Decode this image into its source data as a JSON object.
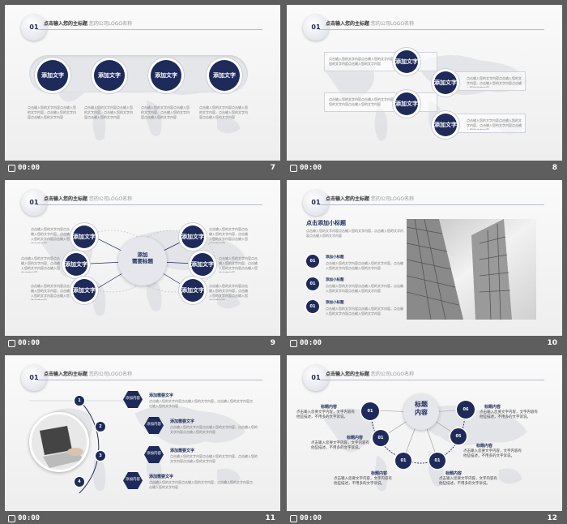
{
  "footer": {
    "time": "00:00"
  },
  "header": {
    "num": "01",
    "title": "点击输入您的主标题",
    "subtitle": "/ 您的公司LOGO名称"
  },
  "filler": "点击输入您的文字内容点击输入您的文字内容，点击输入您的文字内容点击输入您的文字内容",
  "slides": [
    {
      "num": "7",
      "circles": [
        "添加文字",
        "添加文字",
        "添加文字",
        "添加文字"
      ]
    },
    {
      "num": "8",
      "circles": [
        "添加文字",
        "添加文字",
        "添加文字",
        "添加文字"
      ]
    },
    {
      "num": "9",
      "center": "添加\n需要标题",
      "circles": [
        "添加文字",
        "添加文字",
        "添加文字",
        "添加文字",
        "添加文字",
        "添加文字"
      ]
    },
    {
      "num": "10",
      "subtitle": "点击添加小标题",
      "items": [
        {
          "n": "01",
          "t": "添加小标题"
        },
        {
          "n": "01",
          "t": "添加小标题"
        },
        {
          "n": "01",
          "t": "添加小标题"
        }
      ]
    },
    {
      "num": "11",
      "steps": [
        "1",
        "2",
        "3",
        "4"
      ],
      "hex": [
        "添加内容",
        "添加内容",
        "添加内容",
        "添加内容"
      ],
      "heads": [
        "添加需要文字",
        "添加需要文字",
        "添加需要文字",
        "添加需要文字"
      ]
    },
    {
      "num": "12",
      "center": "标题\n内容",
      "nodes": [
        "01",
        "01",
        "01",
        "01",
        "05",
        "06"
      ],
      "label": "标题内容",
      "desc": "点击输入您要文字内容，文字内容有\n他些描述，不用多的文字诉说。"
    }
  ]
}
